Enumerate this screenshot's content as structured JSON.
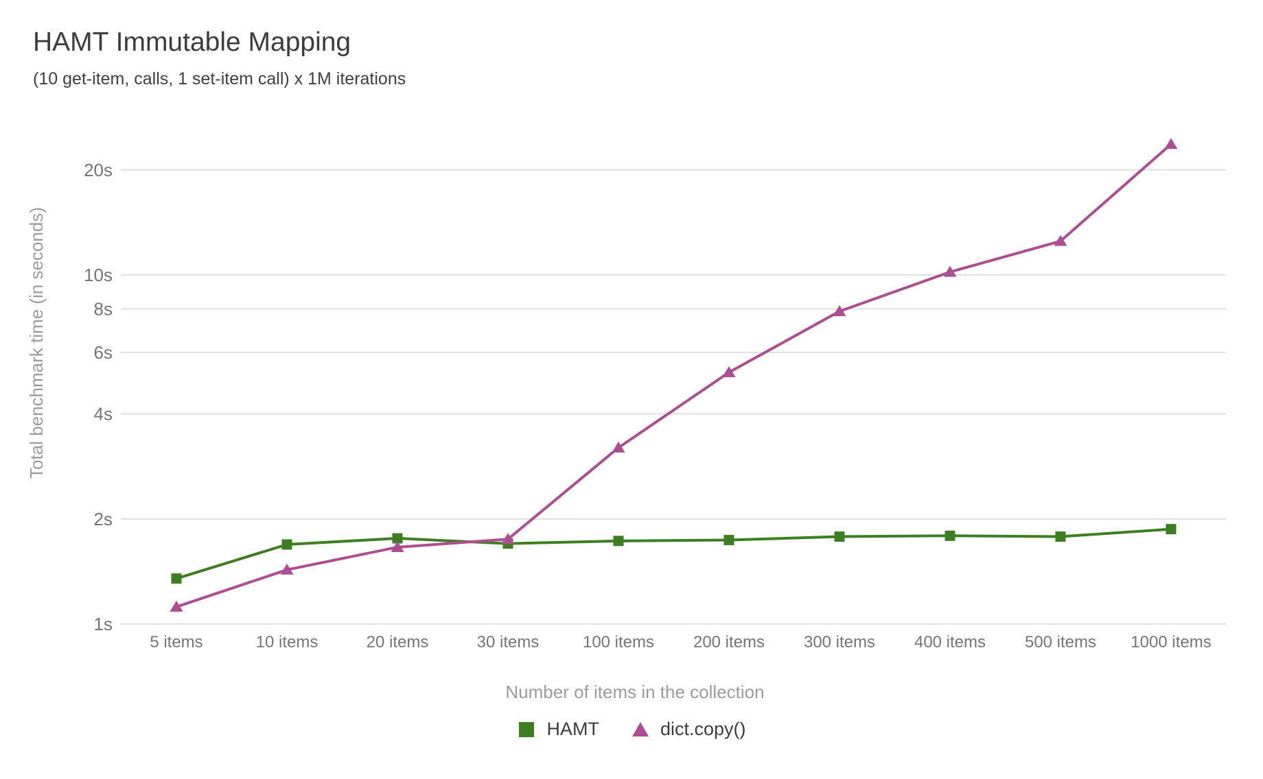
{
  "header": {
    "title": "HAMT Immutable Mapping",
    "subtitle": "(10 get-item, calls, 1 set-item call) x 1M iterations"
  },
  "chart_data": {
    "type": "line",
    "title": "HAMT Immutable Mapping",
    "subtitle": "(10 get-item, calls, 1 set-item call) x 1M iterations",
    "xlabel": "Number of items in the collection",
    "ylabel": "Total benchmark time (in seconds)",
    "y_scale": "log",
    "ylim": [
      1,
      26
    ],
    "grid": true,
    "legend_position": "bottom",
    "categories": [
      "5 items",
      "10 items",
      "20 items",
      "30 items",
      "100 items",
      "200 items",
      "300 items",
      "400 items",
      "500 items",
      "1000 items"
    ],
    "y_ticks": [
      {
        "value": 1,
        "label": "1s"
      },
      {
        "value": 2,
        "label": "2s"
      },
      {
        "value": 4,
        "label": "4s"
      },
      {
        "value": 6,
        "label": "6s"
      },
      {
        "value": 8,
        "label": "8s"
      },
      {
        "value": 10,
        "label": "10s"
      },
      {
        "value": 20,
        "label": "20s"
      }
    ],
    "series": [
      {
        "name": "HAMT",
        "color": "#3e7e22",
        "marker": "square",
        "values": [
          1.35,
          1.69,
          1.76,
          1.7,
          1.73,
          1.74,
          1.78,
          1.79,
          1.78,
          1.87
        ]
      },
      {
        "name": "dict.copy()",
        "color": "#ad4e92",
        "marker": "triangle",
        "values": [
          1.12,
          1.43,
          1.66,
          1.75,
          3.2,
          5.26,
          7.87,
          10.2,
          12.5,
          23.7
        ]
      }
    ]
  },
  "colors": {
    "background": "#ffffff",
    "grid": "#e0e0e0",
    "tick_label": "#757575",
    "axis_title": "#9b9b9b",
    "title_text": "#3c3c3c",
    "legend_text": "#3c3c3c",
    "hamt_green": "#3e7e22",
    "dict_purple": "#ad4e92"
  }
}
